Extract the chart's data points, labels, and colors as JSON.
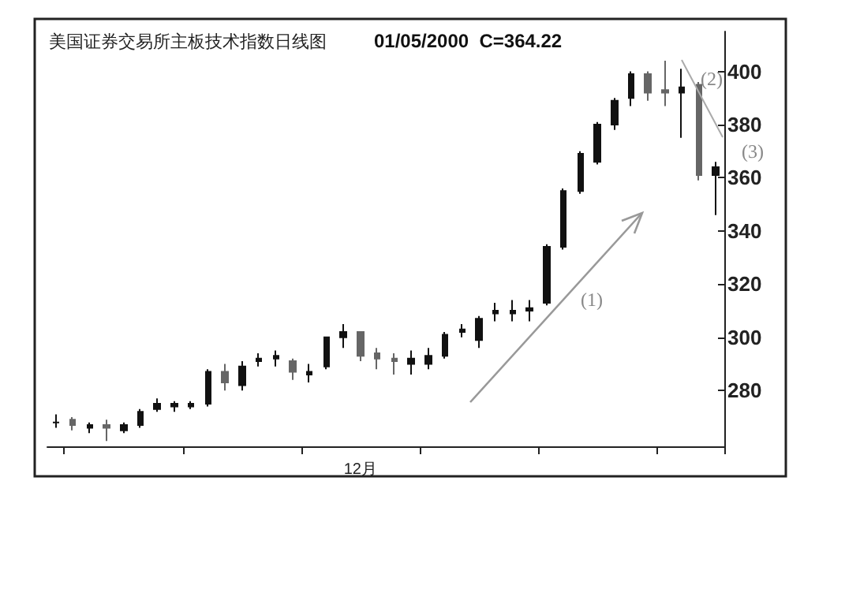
{
  "chart_data": {
    "type": "candlestick",
    "title": "美国证券交易所主板技术指数日线图",
    "subtitle": "01/05/2000  C=364.22",
    "categories": [
      null,
      null,
      null,
      null,
      null,
      null,
      null,
      null,
      null,
      null,
      null,
      null,
      null,
      null,
      null,
      null,
      null,
      null,
      "12月",
      null,
      null,
      null,
      null,
      null,
      null,
      null,
      null,
      null,
      null,
      null,
      null,
      null,
      null,
      null,
      null,
      null,
      null,
      null,
      null,
      null
    ],
    "ohlc": [
      [
        268,
        271,
        266,
        268
      ],
      [
        269,
        270,
        265,
        267
      ],
      [
        266,
        268,
        264,
        267
      ],
      [
        267,
        269,
        261,
        266
      ],
      [
        265,
        268,
        264,
        267
      ],
      [
        267,
        273,
        266,
        272
      ],
      [
        273,
        277,
        272,
        275
      ],
      [
        274,
        276,
        272,
        275
      ],
      [
        274,
        276,
        273,
        275
      ],
      [
        275,
        288,
        274,
        287
      ],
      [
        287,
        290,
        280,
        283
      ],
      [
        282,
        291,
        280,
        289
      ],
      [
        291,
        294,
        289,
        292
      ],
      [
        292,
        295,
        289,
        293
      ],
      [
        291,
        292,
        284,
        287
      ],
      [
        286,
        290,
        283,
        287
      ],
      [
        289,
        300,
        288,
        300
      ],
      [
        300,
        305,
        296,
        302
      ],
      [
        302,
        302,
        291,
        293
      ],
      [
        294,
        296,
        288,
        292
      ],
      [
        292,
        294,
        286,
        291
      ],
      [
        290,
        295,
        286,
        292
      ],
      [
        290,
        296,
        288,
        293
      ],
      [
        293,
        302,
        292,
        301
      ],
      [
        302,
        305,
        300,
        303
      ],
      [
        299,
        308,
        296,
        307
      ],
      [
        309,
        313,
        306,
        310
      ],
      [
        309,
        314,
        306,
        310
      ],
      [
        310,
        314,
        306,
        311
      ],
      [
        313,
        335,
        312,
        334
      ],
      [
        334,
        356,
        333,
        355
      ],
      [
        355,
        370,
        354,
        369
      ],
      [
        366,
        381,
        365,
        380
      ],
      [
        380,
        390,
        378,
        389
      ],
      [
        390,
        400,
        387,
        399
      ],
      [
        399,
        400,
        389,
        392
      ],
      [
        393,
        404,
        387,
        392
      ],
      [
        392,
        401,
        375,
        394
      ],
      [
        395,
        396,
        359,
        361
      ],
      [
        361,
        366,
        346,
        364
      ]
    ],
    "colors": [
      "#111111",
      "#666666",
      "#111111",
      "#666666",
      "#111111",
      "#111111",
      "#111111",
      "#111111",
      "#111111",
      "#111111",
      "#666666",
      "#111111",
      "#111111",
      "#111111",
      "#666666",
      "#111111",
      "#111111",
      "#111111",
      "#666666",
      "#666666",
      "#666666",
      "#111111",
      "#111111",
      "#111111",
      "#111111",
      "#111111",
      "#111111",
      "#111111",
      "#111111",
      "#111111",
      "#111111",
      "#111111",
      "#111111",
      "#111111",
      "#111111",
      "#666666",
      "#666666",
      "#111111",
      "#666666",
      "#111111"
    ],
    "ylim": [
      259,
      415
    ],
    "yticks": [
      280,
      300,
      320,
      340,
      360,
      380,
      400
    ],
    "annotations": [
      "(1)",
      "(2)",
      "(3)"
    ],
    "grid": false
  }
}
